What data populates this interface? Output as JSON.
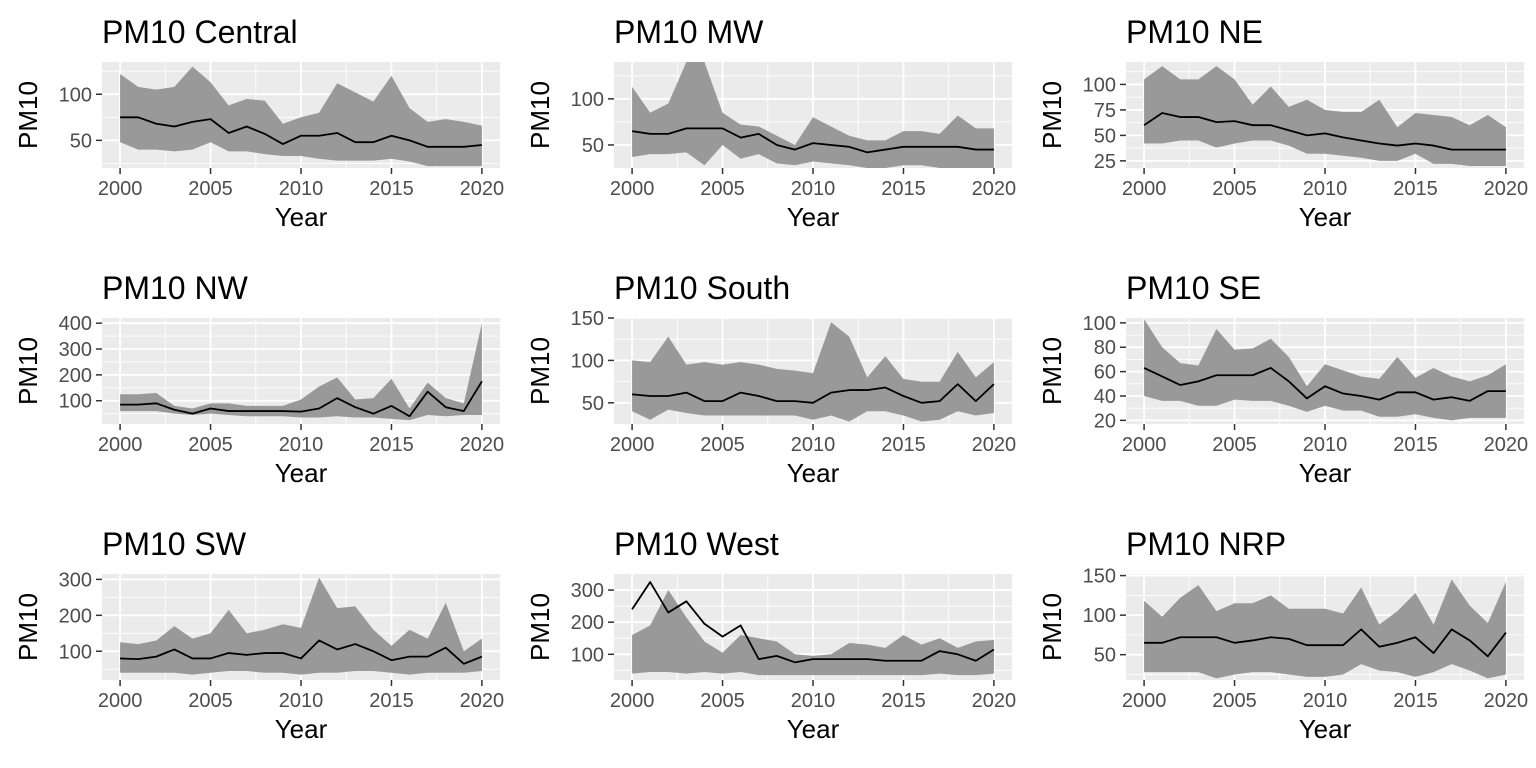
{
  "chart_data": [
    {
      "type": "area",
      "title": "PM10 Central",
      "xlabel": "Year",
      "ylabel": "PM10",
      "xlim": [
        1999,
        2021
      ],
      "ylim": [
        20,
        135
      ],
      "xticks": [
        2000,
        2005,
        2010,
        2015,
        2020
      ],
      "yticks": [
        50,
        100
      ],
      "grid": true,
      "x": [
        2000,
        2001,
        2002,
        2003,
        2004,
        2005,
        2006,
        2007,
        2008,
        2009,
        2010,
        2011,
        2012,
        2013,
        2014,
        2015,
        2016,
        2017,
        2018,
        2019,
        2020
      ],
      "series": [
        {
          "values": [
            75,
            75,
            68,
            65,
            70,
            73,
            58,
            65,
            57,
            46,
            55,
            55,
            58,
            48,
            48,
            55,
            50,
            43,
            43,
            43,
            45
          ]
        },
        {
          "values": [
            48,
            40,
            40,
            38,
            40,
            48,
            38,
            38,
            35,
            33,
            33,
            30,
            28,
            28,
            28,
            30,
            27,
            22,
            22,
            22,
            22
          ]
        },
        {
          "values": [
            122,
            108,
            105,
            108,
            130,
            113,
            88,
            95,
            93,
            68,
            75,
            80,
            112,
            102,
            92,
            120,
            85,
            70,
            73,
            70,
            66
          ]
        }
      ]
    },
    {
      "type": "area",
      "title": "PM10 MW",
      "xlabel": "Year",
      "ylabel": "PM10",
      "xlim": [
        1999,
        2021
      ],
      "ylim": [
        25,
        140
      ],
      "xticks": [
        2000,
        2005,
        2010,
        2015,
        2020
      ],
      "yticks": [
        50,
        100
      ],
      "grid": true,
      "x": [
        2000,
        2001,
        2002,
        2003,
        2004,
        2005,
        2006,
        2007,
        2008,
        2009,
        2010,
        2011,
        2012,
        2013,
        2014,
        2015,
        2016,
        2017,
        2018,
        2019,
        2020
      ],
      "series": [
        {
          "values": [
            65,
            62,
            62,
            68,
            68,
            68,
            58,
            62,
            50,
            45,
            52,
            50,
            48,
            42,
            45,
            48,
            48,
            48,
            48,
            45,
            45
          ]
        },
        {
          "values": [
            37,
            40,
            40,
            42,
            28,
            50,
            35,
            40,
            30,
            28,
            32,
            30,
            28,
            25,
            25,
            28,
            28,
            25,
            25,
            25,
            25
          ]
        },
        {
          "values": [
            113,
            85,
            95,
            140,
            140,
            85,
            72,
            70,
            60,
            50,
            80,
            70,
            60,
            55,
            55,
            65,
            65,
            62,
            82,
            68,
            68
          ]
        }
      ]
    },
    {
      "type": "area",
      "title": "PM10 NE",
      "xlabel": "Year",
      "ylabel": "PM10",
      "xlim": [
        1999,
        2021
      ],
      "ylim": [
        18,
        122
      ],
      "xticks": [
        2000,
        2005,
        2010,
        2015,
        2020
      ],
      "yticks": [
        25,
        50,
        75,
        100
      ],
      "grid": true,
      "x": [
        2000,
        2001,
        2002,
        2003,
        2004,
        2005,
        2006,
        2007,
        2008,
        2009,
        2010,
        2011,
        2012,
        2013,
        2014,
        2015,
        2016,
        2017,
        2018,
        2019,
        2020
      ],
      "series": [
        {
          "values": [
            60,
            72,
            68,
            68,
            63,
            64,
            60,
            60,
            55,
            50,
            52,
            48,
            45,
            42,
            40,
            42,
            40,
            36,
            36,
            36,
            36
          ]
        },
        {
          "values": [
            42,
            42,
            45,
            45,
            38,
            42,
            45,
            45,
            40,
            32,
            32,
            30,
            28,
            25,
            25,
            32,
            22,
            22,
            20,
            20,
            20
          ]
        },
        {
          "values": [
            105,
            118,
            105,
            105,
            118,
            105,
            80,
            98,
            78,
            85,
            75,
            73,
            73,
            85,
            58,
            72,
            70,
            68,
            60,
            70,
            58
          ]
        }
      ]
    },
    {
      "type": "area",
      "title": "PM10 NW",
      "xlabel": "Year",
      "ylabel": "PM10",
      "xlim": [
        1999,
        2021
      ],
      "ylim": [
        10,
        420
      ],
      "xticks": [
        2000,
        2005,
        2010,
        2015,
        2020
      ],
      "yticks": [
        100,
        200,
        300,
        400
      ],
      "grid": true,
      "x": [
        2000,
        2001,
        2002,
        2003,
        2004,
        2005,
        2006,
        2007,
        2008,
        2009,
        2010,
        2011,
        2012,
        2013,
        2014,
        2015,
        2016,
        2017,
        2018,
        2019,
        2020
      ],
      "series": [
        {
          "values": [
            85,
            85,
            90,
            65,
            50,
            70,
            60,
            60,
            60,
            60,
            58,
            70,
            110,
            75,
            50,
            80,
            40,
            135,
            75,
            60,
            175
          ]
        },
        {
          "values": [
            60,
            60,
            60,
            50,
            45,
            50,
            45,
            40,
            40,
            40,
            35,
            35,
            40,
            35,
            35,
            30,
            25,
            45,
            40,
            45,
            45
          ]
        },
        {
          "values": [
            125,
            125,
            130,
            80,
            70,
            90,
            90,
            80,
            80,
            80,
            105,
            155,
            190,
            105,
            110,
            185,
            70,
            170,
            110,
            90,
            400
          ]
        }
      ]
    },
    {
      "type": "area",
      "title": "PM10 South",
      "xlabel": "Year",
      "ylabel": "PM10",
      "xlim": [
        1999,
        2021
      ],
      "ylim": [
        25,
        150
      ],
      "xticks": [
        2000,
        2005,
        2010,
        2015,
        2020
      ],
      "yticks": [
        50,
        100,
        150
      ],
      "grid": true,
      "x": [
        2000,
        2001,
        2002,
        2003,
        2004,
        2005,
        2006,
        2007,
        2008,
        2009,
        2010,
        2011,
        2012,
        2013,
        2014,
        2015,
        2016,
        2017,
        2018,
        2019,
        2020
      ],
      "series": [
        {
          "values": [
            60,
            58,
            58,
            62,
            52,
            52,
            62,
            58,
            52,
            52,
            50,
            62,
            65,
            65,
            68,
            58,
            50,
            52,
            72,
            52,
            72
          ]
        },
        {
          "values": [
            40,
            30,
            42,
            38,
            35,
            35,
            35,
            35,
            35,
            35,
            30,
            35,
            28,
            40,
            40,
            35,
            28,
            30,
            40,
            35,
            38
          ]
        },
        {
          "values": [
            100,
            98,
            128,
            95,
            98,
            95,
            98,
            95,
            90,
            88,
            85,
            145,
            128,
            80,
            105,
            78,
            75,
            75,
            110,
            80,
            98
          ]
        }
      ]
    },
    {
      "type": "area",
      "title": "PM10 SE",
      "xlabel": "Year",
      "ylabel": "PM10",
      "xlim": [
        1999,
        2021
      ],
      "ylim": [
        17,
        104
      ],
      "xticks": [
        2000,
        2005,
        2010,
        2015,
        2020
      ],
      "yticks": [
        20,
        40,
        60,
        80,
        100
      ],
      "grid": true,
      "x": [
        2000,
        2001,
        2002,
        2003,
        2004,
        2005,
        2006,
        2007,
        2008,
        2009,
        2010,
        2011,
        2012,
        2013,
        2014,
        2015,
        2016,
        2017,
        2018,
        2019,
        2020
      ],
      "series": [
        {
          "values": [
            63,
            56,
            49,
            52,
            57,
            57,
            57,
            63,
            52,
            38,
            48,
            42,
            40,
            37,
            43,
            43,
            37,
            39,
            36,
            44,
            44
          ]
        },
        {
          "values": [
            40,
            36,
            36,
            32,
            32,
            37,
            36,
            36,
            32,
            27,
            32,
            28,
            28,
            23,
            23,
            25,
            22,
            20,
            22,
            22,
            22
          ]
        },
        {
          "values": [
            103,
            80,
            67,
            65,
            95,
            78,
            79,
            87,
            72,
            48,
            66,
            61,
            56,
            54,
            72,
            55,
            63,
            56,
            52,
            57,
            66
          ]
        }
      ]
    },
    {
      "type": "area",
      "title": "PM10 SW",
      "xlabel": "Year",
      "ylabel": "PM10",
      "xlim": [
        1999,
        2021
      ],
      "ylim": [
        20,
        315
      ],
      "xticks": [
        2000,
        2005,
        2010,
        2015,
        2020
      ],
      "yticks": [
        100,
        200,
        300
      ],
      "grid": true,
      "x": [
        2000,
        2001,
        2002,
        2003,
        2004,
        2005,
        2006,
        2007,
        2008,
        2009,
        2010,
        2011,
        2012,
        2013,
        2014,
        2015,
        2016,
        2017,
        2018,
        2019,
        2020
      ],
      "series": [
        {
          "values": [
            80,
            78,
            85,
            105,
            80,
            80,
            95,
            90,
            95,
            95,
            80,
            130,
            105,
            120,
            100,
            75,
            85,
            85,
            110,
            65,
            85
          ]
        },
        {
          "values": [
            40,
            40,
            40,
            40,
            35,
            40,
            45,
            45,
            40,
            40,
            35,
            40,
            40,
            45,
            45,
            40,
            35,
            40,
            40,
            40,
            45
          ]
        },
        {
          "values": [
            125,
            120,
            130,
            170,
            135,
            150,
            215,
            150,
            160,
            175,
            165,
            305,
            220,
            225,
            160,
            115,
            160,
            135,
            235,
            100,
            135
          ]
        }
      ]
    },
    {
      "type": "area",
      "title": "PM10 West",
      "xlabel": "Year",
      "ylabel": "PM10",
      "xlim": [
        1999,
        2021
      ],
      "ylim": [
        20,
        350
      ],
      "xticks": [
        2000,
        2005,
        2010,
        2015,
        2020
      ],
      "yticks": [
        100,
        200,
        300
      ],
      "grid": true,
      "x": [
        2000,
        2001,
        2002,
        2003,
        2004,
        2005,
        2006,
        2007,
        2008,
        2009,
        2010,
        2011,
        2012,
        2013,
        2014,
        2015,
        2016,
        2017,
        2018,
        2019,
        2020
      ],
      "series": [
        {
          "values": [
            240,
            325,
            230,
            265,
            195,
            155,
            190,
            85,
            95,
            75,
            85,
            85,
            85,
            85,
            80,
            80,
            80,
            110,
            100,
            80,
            115
          ]
        },
        {
          "values": [
            40,
            45,
            45,
            40,
            45,
            40,
            45,
            35,
            35,
            35,
            35,
            35,
            35,
            35,
            35,
            35,
            35,
            40,
            35,
            35,
            40
          ]
        },
        {
          "values": [
            160,
            190,
            300,
            215,
            140,
            105,
            160,
            150,
            140,
            100,
            95,
            100,
            135,
            130,
            120,
            160,
            130,
            150,
            120,
            140,
            145
          ]
        }
      ]
    },
    {
      "type": "area",
      "title": "PM10 NRP",
      "xlabel": "Year",
      "ylabel": "PM10",
      "xlim": [
        1999,
        2021
      ],
      "ylim": [
        18,
        152
      ],
      "xticks": [
        2000,
        2005,
        2010,
        2015,
        2020
      ],
      "yticks": [
        50,
        100,
        150
      ],
      "grid": true,
      "x": [
        2000,
        2001,
        2002,
        2003,
        2004,
        2005,
        2006,
        2007,
        2008,
        2009,
        2010,
        2011,
        2012,
        2013,
        2014,
        2015,
        2016,
        2017,
        2018,
        2019,
        2020
      ],
      "series": [
        {
          "values": [
            65,
            65,
            72,
            72,
            72,
            65,
            68,
            72,
            70,
            62,
            62,
            62,
            82,
            60,
            65,
            72,
            52,
            82,
            68,
            48,
            78
          ]
        },
        {
          "values": [
            28,
            28,
            28,
            28,
            20,
            25,
            28,
            28,
            25,
            22,
            22,
            25,
            38,
            30,
            28,
            22,
            28,
            38,
            30,
            20,
            25
          ]
        },
        {
          "values": [
            118,
            98,
            122,
            138,
            105,
            115,
            115,
            125,
            108,
            108,
            108,
            102,
            135,
            88,
            105,
            128,
            88,
            145,
            112,
            90,
            142
          ]
        }
      ]
    }
  ]
}
